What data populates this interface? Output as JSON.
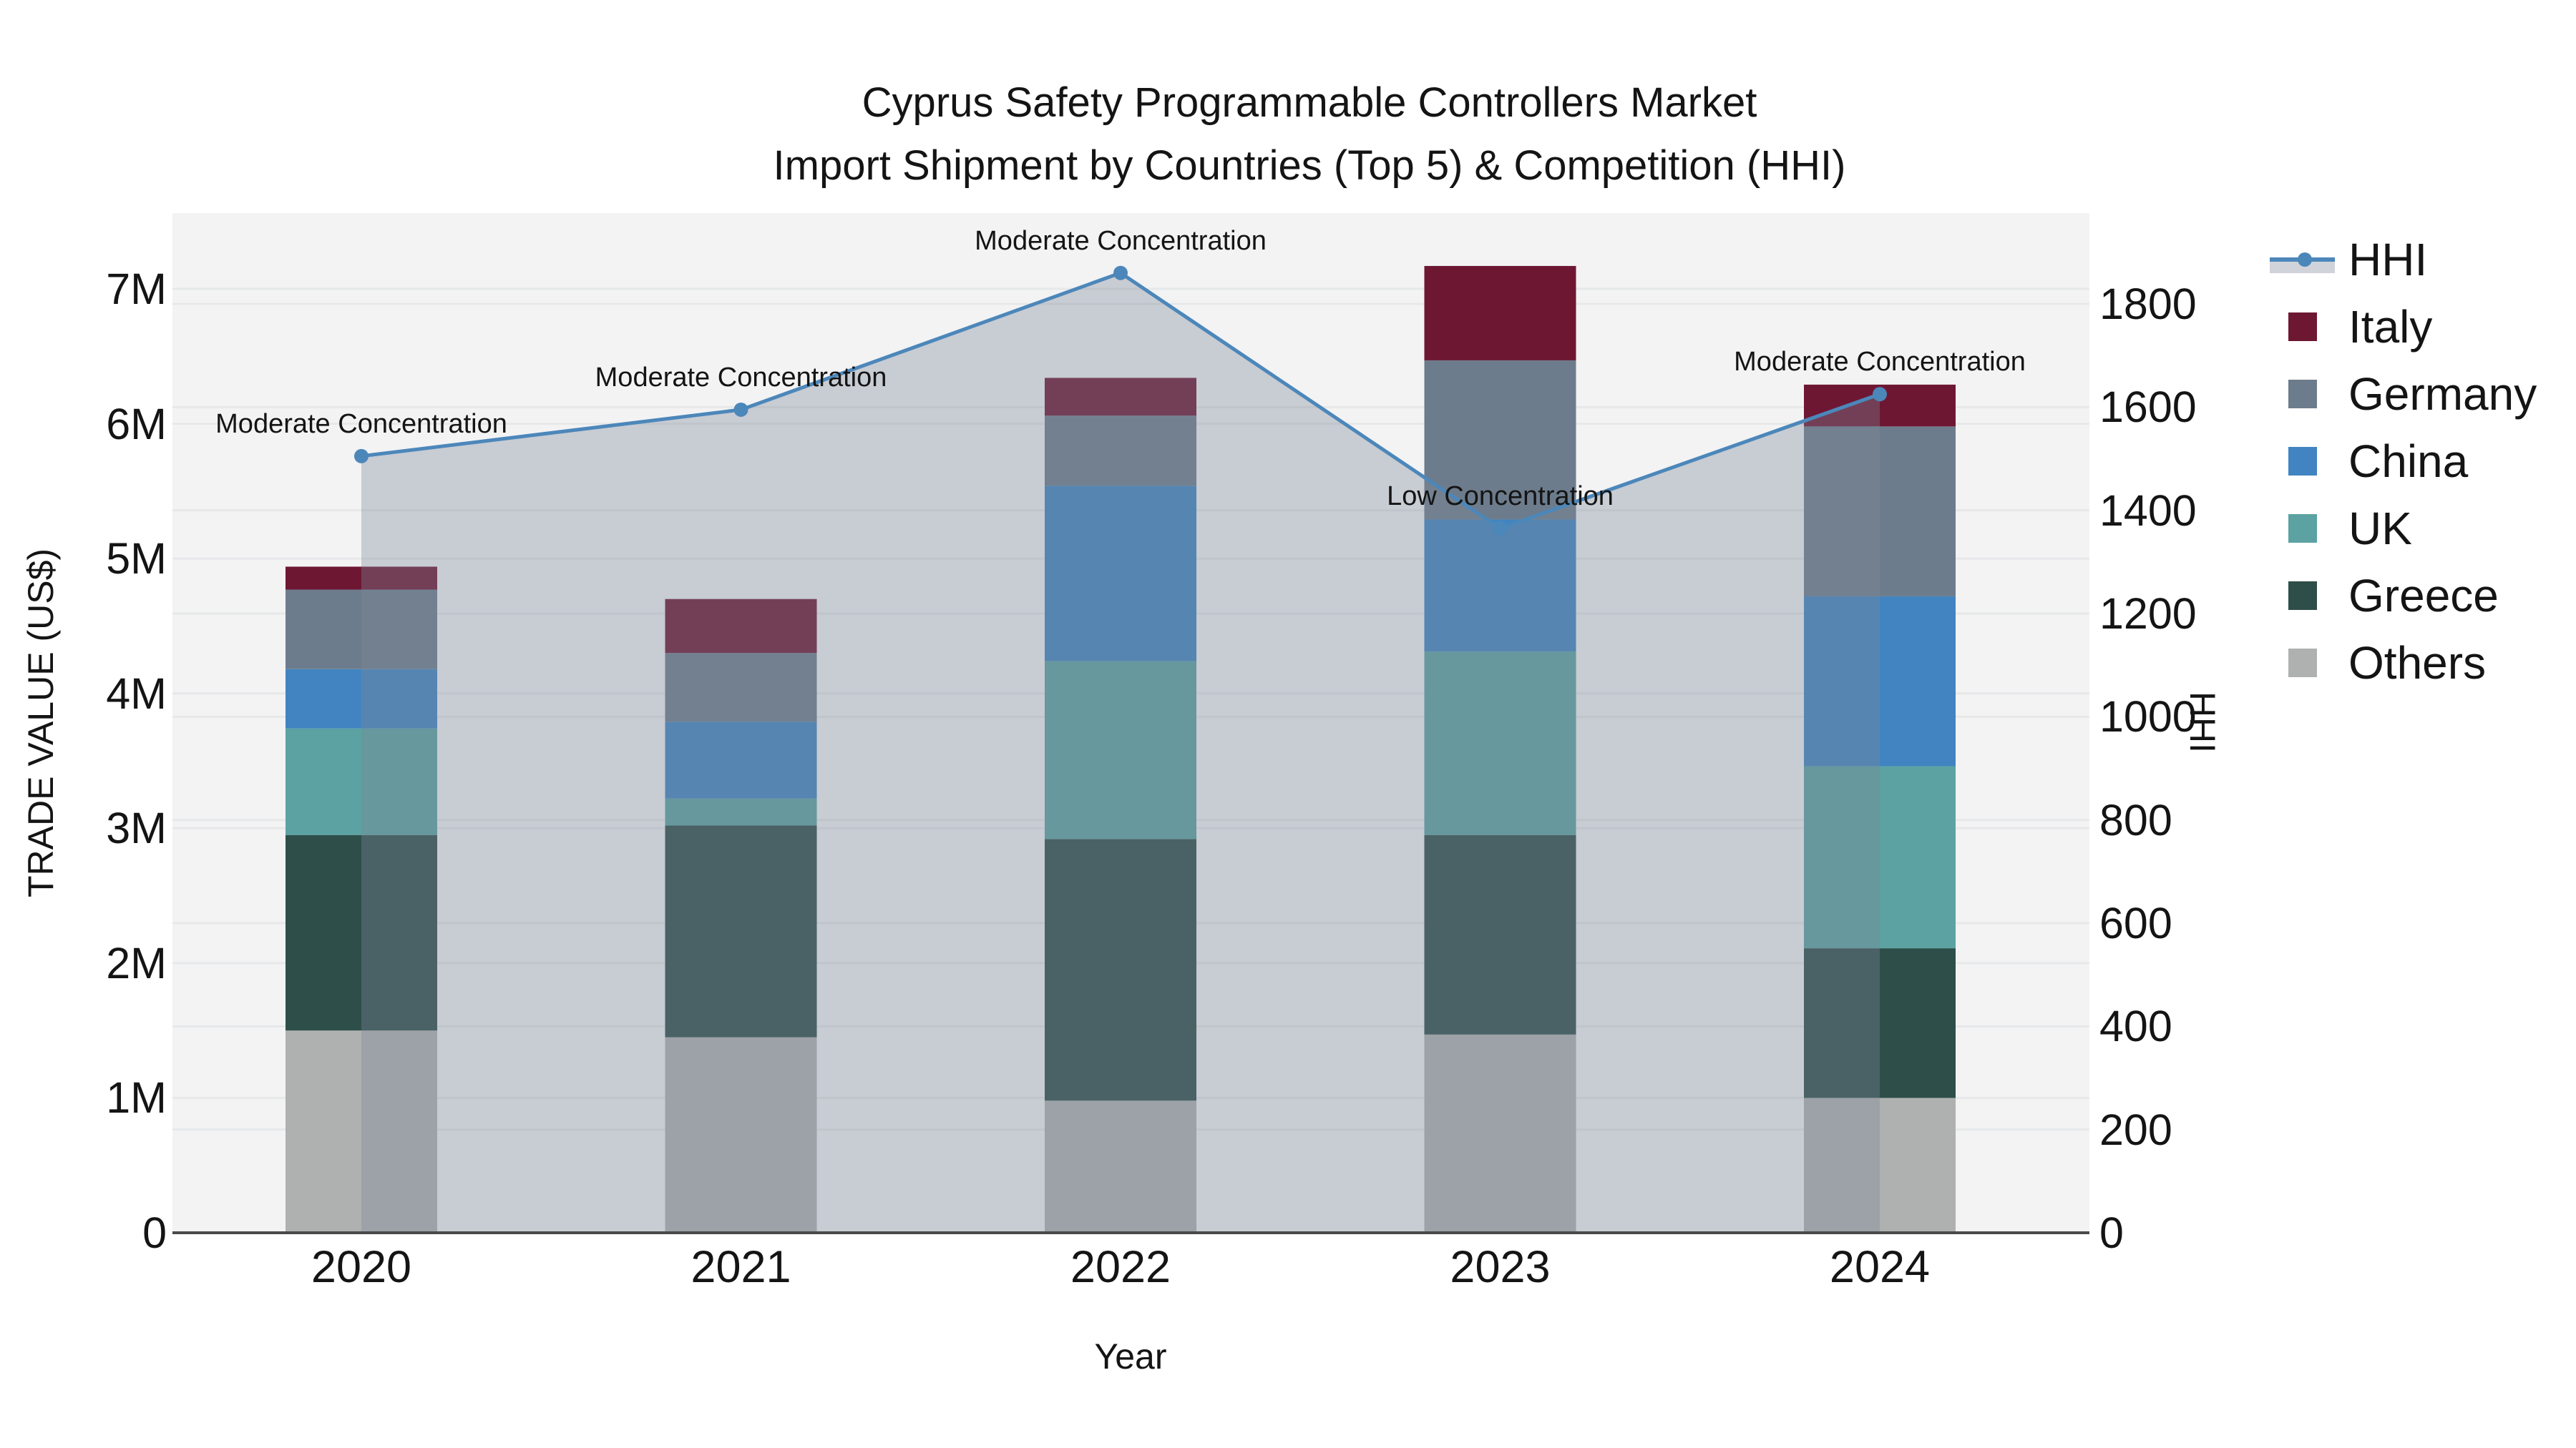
{
  "title": {
    "line1": "Cyprus Safety Programmable Controllers Market",
    "line2": "Import Shipment by Countries (Top 5) & Competition (HHI)"
  },
  "y_left_axis": {
    "title": "TRADE VALUE (US$)",
    "ticks": [
      "0",
      "1M",
      "2M",
      "3M",
      "4M",
      "5M",
      "6M",
      "7M"
    ]
  },
  "y_right_axis": {
    "title": "HHI",
    "ticks": [
      "0",
      "200",
      "400",
      "600",
      "800",
      "1000",
      "1200",
      "1400",
      "1600",
      "1800"
    ]
  },
  "x_axis": {
    "title": "Year",
    "ticks": [
      "2020",
      "2021",
      "2022",
      "2023",
      "2024"
    ]
  },
  "legend": {
    "items": [
      {
        "label": "HHI",
        "type": "line"
      },
      {
        "label": "Italy",
        "type": "swatch",
        "color": "#6e1733"
      },
      {
        "label": "Germany",
        "type": "swatch",
        "color": "#6d7c8c"
      },
      {
        "label": "China",
        "type": "swatch",
        "color": "#4184c1"
      },
      {
        "label": "UK",
        "type": "swatch",
        "color": "#5ca2a2"
      },
      {
        "label": "Greece",
        "type": "swatch",
        "color": "#2e4e49"
      },
      {
        "label": "Others",
        "type": "swatch",
        "color": "#aeb1b0"
      }
    ]
  },
  "colors": {
    "background": "#ffffff",
    "plot_background": "#f3f3f4",
    "gridline": "#e7e8e9",
    "axis_line": "#4a4a4a",
    "hhi_line": "#4c87ba",
    "hhi_area_fill": "rgba(126,137,152,0.36)"
  },
  "chart_data": {
    "type": "combo stacked-bar + line",
    "title": "Cyprus Safety Programmable Controllers Market — Import Shipment by Countries (Top 5) & Competition (HHI)",
    "categories": [
      "2020",
      "2021",
      "2022",
      "2023",
      "2024"
    ],
    "bar_unit": "millions US$",
    "bar_series_bottom_to_top": [
      {
        "name": "Others",
        "color": "#aeb1b0",
        "values": [
          1.5,
          1.45,
          0.98,
          1.47,
          1.0
        ]
      },
      {
        "name": "Greece",
        "color": "#2e4e49",
        "values": [
          1.45,
          1.57,
          1.94,
          1.48,
          1.11
        ]
      },
      {
        "name": "UK",
        "color": "#5ca2a2",
        "values": [
          0.79,
          0.2,
          1.32,
          1.36,
          1.35
        ]
      },
      {
        "name": "China",
        "color": "#4184c1",
        "values": [
          0.44,
          0.57,
          1.3,
          0.98,
          1.26
        ]
      },
      {
        "name": "Germany",
        "color": "#6d7c8c",
        "values": [
          0.59,
          0.51,
          0.52,
          1.18,
          1.26
        ]
      },
      {
        "name": "Italy",
        "color": "#6e1733",
        "values": [
          0.17,
          0.4,
          0.28,
          0.7,
          0.31
        ]
      }
    ],
    "bar_totals": [
      4.94,
      4.7,
      6.34,
      7.17,
      6.29
    ],
    "line_series": {
      "name": "HHI",
      "color": "#4c87ba",
      "area_fill": "rgba(126,137,152,0.36)",
      "values": [
        1505,
        1595,
        1860,
        1365,
        1625
      ]
    },
    "annotations": [
      {
        "category": "2020",
        "text": "Moderate Concentration"
      },
      {
        "category": "2021",
        "text": "Moderate Concentration"
      },
      {
        "category": "2022",
        "text": "Moderate Concentration"
      },
      {
        "category": "2023",
        "text": "Low Concentration"
      },
      {
        "category": "2024",
        "text": "Moderate Concentration"
      }
    ],
    "xlabel": "Year",
    "ylabel_left": "TRADE VALUE (US$)",
    "ylabel_right": "HHI",
    "ylim_left": [
      0,
      7560000
    ],
    "ylim_right": [
      0,
      1976
    ],
    "grid": true,
    "legend_position": "outside-right"
  }
}
